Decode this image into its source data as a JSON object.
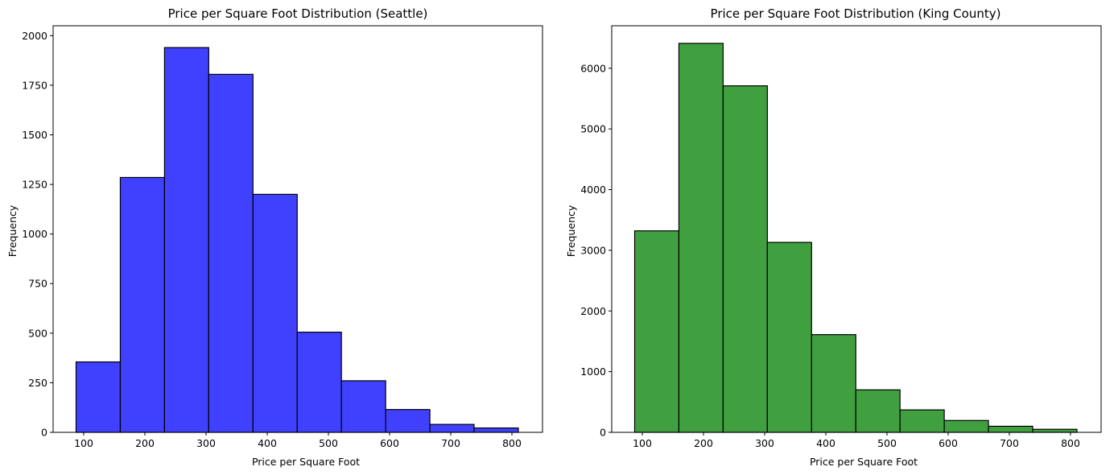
{
  "chart_data": [
    {
      "type": "bar",
      "title": "Price per Square Foot Distribution (Seattle)",
      "xlabel": "Price per Square Foot",
      "ylabel": "Frequency",
      "bin_edges": [
        87.5,
        159.8,
        232.1,
        304.4,
        376.7,
        449.0,
        521.3,
        593.6,
        665.9,
        738.2,
        810.5
      ],
      "values": [
        355,
        1285,
        1940,
        1805,
        1200,
        505,
        260,
        115,
        40,
        22
      ],
      "xlim": [
        50,
        850
      ],
      "ylim": [
        0,
        2050
      ],
      "xticks": [
        100,
        200,
        300,
        400,
        500,
        600,
        700,
        800
      ],
      "yticks": [
        0,
        250,
        500,
        750,
        1000,
        1250,
        1500,
        1750,
        2000
      ],
      "bar_color": "#4040ff",
      "edge_color": "#000000"
    },
    {
      "type": "bar",
      "title": "Price per Square Foot Distribution (King County)",
      "xlabel": "Price per Square Foot",
      "ylabel": "Frequency",
      "bin_edges": [
        87.5,
        159.8,
        232.1,
        304.4,
        376.7,
        449.0,
        521.3,
        593.6,
        665.9,
        738.2,
        810.5
      ],
      "values": [
        3320,
        6410,
        5710,
        3130,
        1610,
        700,
        370,
        195,
        100,
        50
      ],
      "xlim": [
        50,
        850
      ],
      "ylim": [
        0,
        6700
      ],
      "xticks": [
        100,
        200,
        300,
        400,
        500,
        600,
        700,
        800
      ],
      "yticks": [
        0,
        1000,
        2000,
        3000,
        4000,
        5000,
        6000
      ],
      "bar_color": "#40a040",
      "edge_color": "#000000"
    }
  ]
}
